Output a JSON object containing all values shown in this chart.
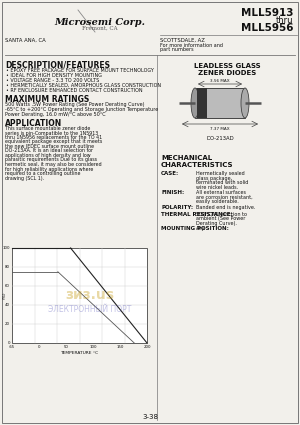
{
  "title_right_lines": [
    "MLL5913",
    "thru",
    "MLL5956"
  ],
  "company": "Microsemi Corp.",
  "company_sub": "Fremont, CA",
  "subtitle_left": "SANTA ANA, CA",
  "subtitle_right": "SCOTTSDALE, AZ",
  "subtitle_right2": "For more information and",
  "subtitle_right3": "part numbers",
  "section_desc": "DESCRIPTION/FEATURES",
  "desc_bullets": [
    "EPOXY FREE PACKAGE FOR SURFACE MOUNT TECHNOLOGY",
    "IDEAL FOR HIGH DENSITY MOUNTING",
    "VOLTAGE RANGE - 3.3 TO 200 VOLTS",
    "HERMETICALLY SEALED, AMORPHOUS GLASS CONSTRUCTION",
    "RF ENCLOSURE ENHANCED CONTACT CONSTRUCTION"
  ],
  "section_max": "MAXIMUM RATINGS",
  "max_lines": [
    "500 Watts .5W Power Rating (See Power Derating Curve)",
    "-65°C to +200°C Operating and Storage Junction Temperature",
    "Power Derating, 16.0 mW/°C above 50°C"
  ],
  "section_app": "APPLICATION",
  "app_text": "This surface mountable zener diode series is pin-Compatible to the 1N5913 thru 1N5956 replacements for the TO 41 equivalent package except that it meets the new JEDEC surface mount outline DO-213AA. It is an ideal selection for applications of high density and low parasitic requirements Due to its glass hermetic seal, it may also be considered for high reliability applications where required to a controlling outline drawing (SCL 1).",
  "leadless_glass_line1": "LEADLESS GLASS",
  "leadless_glass_line2": "ZENER DIODES",
  "section_mech": "MECHANICAL",
  "section_mech2": "CHARACTERISTICS",
  "mech_items": [
    [
      "CASE:",
      "Hermetically sealed glass package, terminated with solid wire nickel leads."
    ],
    [
      "FINISH:",
      "All external surfaces are corrosion resistant, easily solderable."
    ],
    [
      "POLARITY:",
      "Banded end is negative."
    ],
    [
      "THERMAL RESISTANCE:",
      "500°C/W, junction to ambient (See Power Derating Curve)."
    ],
    [
      "MOUNTING POSITION:",
      "Any."
    ]
  ],
  "page_num": "3-38",
  "bg_color": "#f2f0eb",
  "text_color": "#111111",
  "border_color": "#777777",
  "graph_label_x": "TEMPERATURE °C",
  "graph_label_y": "NORMALIZED POWER (%)"
}
